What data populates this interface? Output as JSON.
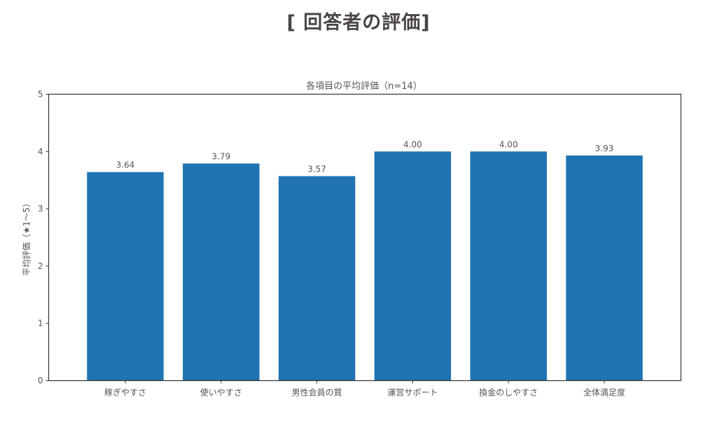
{
  "page": {
    "title": "[ 回答者の評価]"
  },
  "colors": {
    "bar": "#1f73b2",
    "text": "#555555",
    "axis": "#333333",
    "title": "#4a4444"
  },
  "chart_data": {
    "type": "bar",
    "title": "各項目の平均評価（n=14）",
    "xlabel": "",
    "ylabel": "平均評価（★1〜5）",
    "categories": [
      "稼ぎやすさ",
      "使いやすさ",
      "男性会員の質",
      "運営サポート",
      "換金のしやすさ",
      "全体満足度"
    ],
    "values": [
      3.64,
      3.79,
      3.57,
      4.0,
      4.0,
      3.93
    ],
    "value_labels": [
      "3.64",
      "3.79",
      "3.57",
      "4.00",
      "4.00",
      "3.93"
    ],
    "ylim": [
      0,
      5
    ],
    "yticks": [
      0,
      1,
      2,
      3,
      4,
      5
    ],
    "grid": false,
    "legend": null
  }
}
